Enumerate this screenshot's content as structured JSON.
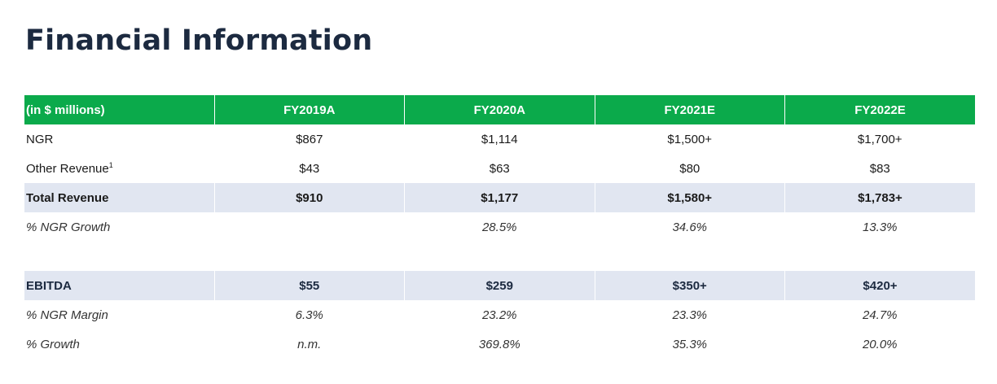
{
  "title": "Financial Information",
  "table": {
    "headers": [
      "(in $ millions)",
      "FY2019A",
      "FY2020A",
      "FY2021E",
      "FY2022E"
    ],
    "rows": [
      {
        "label": "NGR",
        "values": [
          "$867",
          "$1,114",
          "$1,500+",
          "$1,700+"
        ]
      },
      {
        "label": "Other Revenue",
        "footnote": "1",
        "values": [
          "$43",
          "$63",
          "$80",
          "$83"
        ]
      },
      {
        "label": "Total Revenue",
        "values": [
          "$910",
          "$1,177",
          "$1,580+",
          "$1,783+"
        ]
      },
      {
        "label": "% NGR Growth",
        "values": [
          "",
          "28.5%",
          "34.6%",
          "13.3%"
        ]
      },
      {
        "label": "EBITDA",
        "values": [
          "$55",
          "$259",
          "$350+",
          "$420+"
        ]
      },
      {
        "label": "% NGR Margin",
        "values": [
          "6.3%",
          "23.2%",
          "23.3%",
          "24.7%"
        ]
      },
      {
        "label": "% Growth",
        "values": [
          "n.m.",
          "369.8%",
          "35.3%",
          "20.0%"
        ]
      }
    ]
  },
  "colors": {
    "header_bg": "#0baa4b",
    "shaded_row_bg": "#e1e6f1",
    "title": "#1c2a40"
  }
}
